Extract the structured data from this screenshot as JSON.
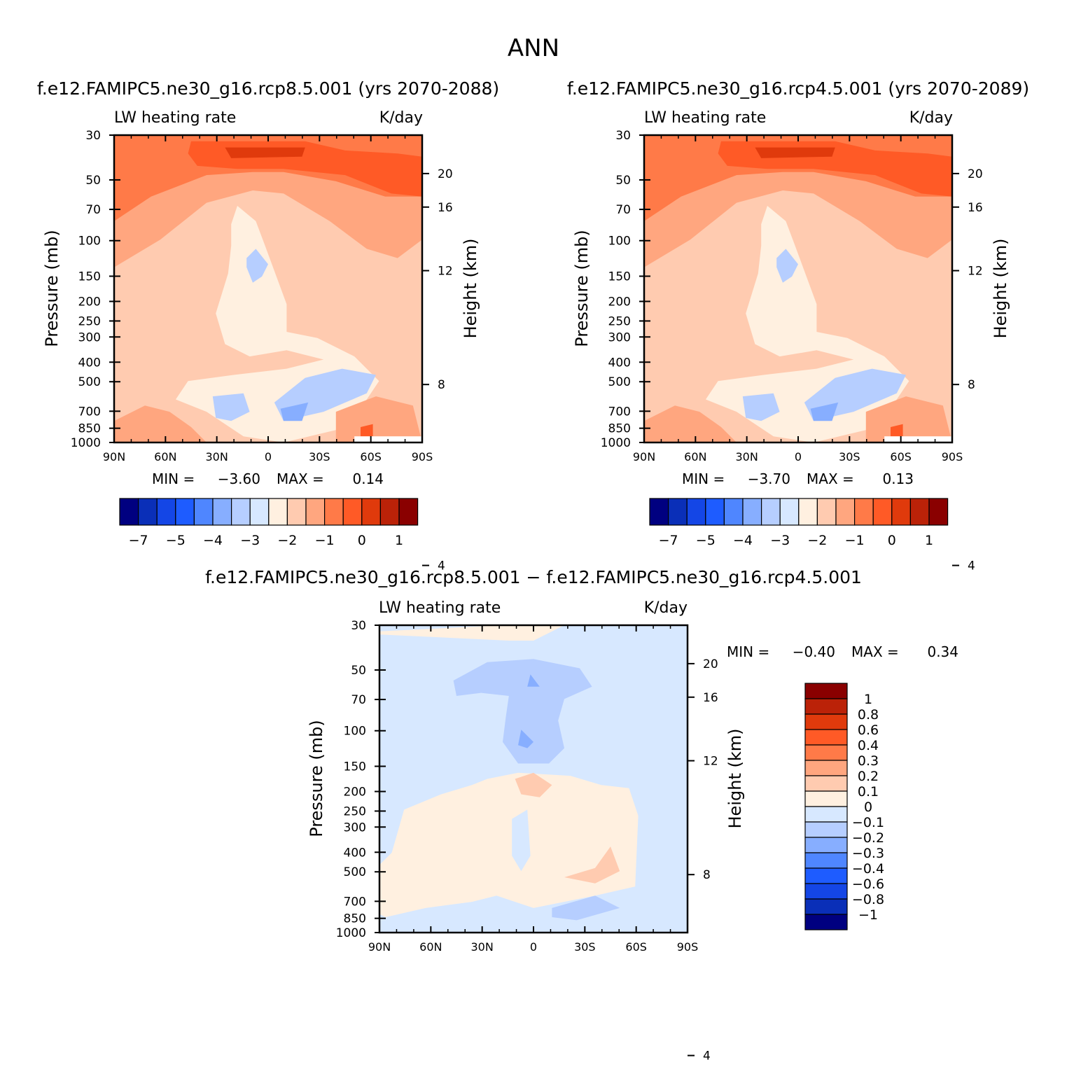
{
  "page": {
    "title": "ANN",
    "diff_title": "f.e12.FAMIPC5.ne30_g16.rcp8.5.001 − f.e12.FAMIPC5.ne30_g16.rcp4.5.001"
  },
  "colors": {
    "main_scale": [
      "#000080",
      "#0a2fb8",
      "#1446e6",
      "#1e5cff",
      "#4f86ff",
      "#87aeff",
      "#b6ceff",
      "#d7e8ff",
      "#fff0e0",
      "#ffcbb0",
      "#ffa67f",
      "#ff7a48",
      "#ff5a26",
      "#e03a0c",
      "#bb2208",
      "#8a0000"
    ],
    "diff_scale": [
      "#000080",
      "#0a2fb8",
      "#1446e6",
      "#1e5cff",
      "#4f86ff",
      "#87aeff",
      "#b6ceff",
      "#d7e8ff",
      "#fff0e0",
      "#ffcbb0",
      "#ffa67f",
      "#ff7a48",
      "#ff5a26",
      "#e03a0c",
      "#bb2208",
      "#8a0000"
    ]
  },
  "chart_data": [
    {
      "type": "heatmap",
      "case": "f.e12.FAMIPC5.ne30_g16.rcp8.5.001 (yrs 2070-2088)",
      "left_label": "LW heating rate",
      "right_label": "K/day",
      "xlabel": "",
      "ylabel": "Pressure (mb)",
      "ylabel_right": "Height (km)",
      "x_ticks": [
        "90N",
        "60N",
        "30N",
        "0",
        "30S",
        "60S",
        "90S"
      ],
      "y_ticks": [
        "30",
        "50",
        "70",
        "100",
        "150",
        "200",
        "250",
        "300",
        "400",
        "500",
        "700",
        "850",
        "1000"
      ],
      "y_right_ticks": [
        "20",
        "16",
        "12",
        "8",
        "4"
      ],
      "min_label": "MIN =",
      "min_value": "-3.60",
      "max_label": "MAX =",
      "max_value": "0.14",
      "colorbar_labels": [
        "-7",
        "-5",
        "-4",
        "-3",
        "-2",
        "-1",
        "0",
        "1"
      ],
      "ylim": [
        1000,
        30
      ],
      "xlim": [
        "90N",
        "90S"
      ]
    },
    {
      "type": "heatmap",
      "case": "f.e12.FAMIPC5.ne30_g16.rcp4.5.001 (yrs 2070-2089)",
      "left_label": "LW heating rate",
      "right_label": "K/day",
      "xlabel": "",
      "ylabel": "Pressure (mb)",
      "ylabel_right": "Height (km)",
      "x_ticks": [
        "90N",
        "60N",
        "30N",
        "0",
        "30S",
        "60S",
        "90S"
      ],
      "y_ticks": [
        "30",
        "50",
        "70",
        "100",
        "150",
        "200",
        "250",
        "300",
        "400",
        "500",
        "700",
        "850",
        "1000"
      ],
      "y_right_ticks": [
        "20",
        "16",
        "12",
        "8",
        "4"
      ],
      "min_label": "MIN =",
      "min_value": "-3.70",
      "max_label": "MAX =",
      "max_value": "0.13",
      "colorbar_labels": [
        "-7",
        "-5",
        "-4",
        "-3",
        "-2",
        "-1",
        "0",
        "1"
      ],
      "ylim": [
        1000,
        30
      ],
      "xlim": [
        "90N",
        "90S"
      ]
    },
    {
      "type": "heatmap",
      "case": "difference",
      "left_label": "LW heating rate",
      "right_label": "K/day",
      "xlabel": "",
      "ylabel": "Pressure (mb)",
      "ylabel_right": "Height (km)",
      "x_ticks": [
        "90N",
        "60N",
        "30N",
        "0",
        "30S",
        "60S",
        "90S"
      ],
      "y_ticks": [
        "30",
        "50",
        "70",
        "100",
        "150",
        "200",
        "250",
        "300",
        "400",
        "500",
        "700",
        "850",
        "1000"
      ],
      "y_right_ticks": [
        "20",
        "16",
        "12",
        "8",
        "4"
      ],
      "min_label": "MIN =",
      "min_value": "-0.40",
      "max_label": "MAX =",
      "max_value": "0.34",
      "colorbar_labels": [
        "1",
        "0.8",
        "0.6",
        "0.4",
        "0.3",
        "0.2",
        "0.1",
        "0",
        "-0.1",
        "-0.2",
        "-0.3",
        "-0.4",
        "-0.6",
        "-0.8",
        "-1"
      ],
      "ylim": [
        1000,
        30
      ],
      "xlim": [
        "90N",
        "90S"
      ]
    }
  ]
}
